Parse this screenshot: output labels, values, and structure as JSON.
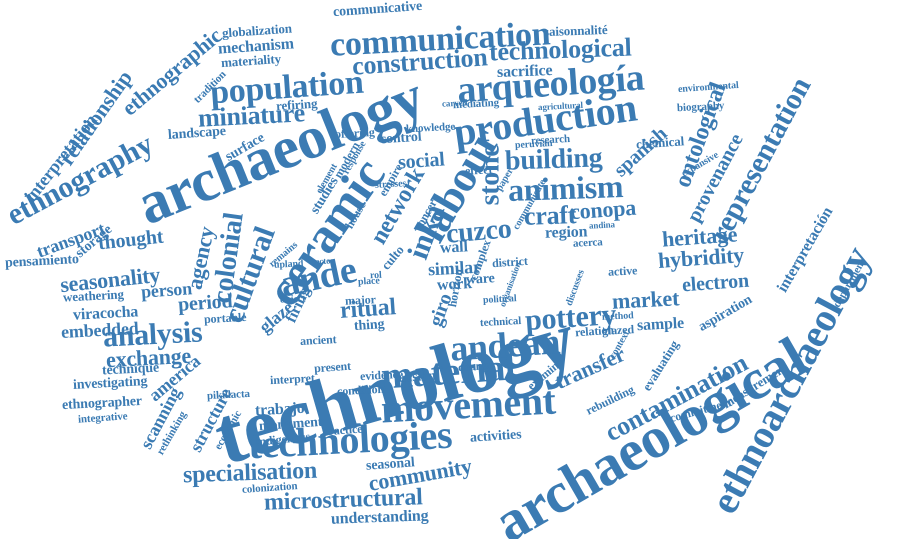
{
  "cloud": {
    "accent_color": "#3b7bb3",
    "background_color": "#ffffff",
    "words": [
      "technology",
      "archaeology",
      "archaeological",
      "ethnoarchaeology",
      "ceramic",
      "labour",
      "production",
      "arqueología",
      "population",
      "communication",
      "construction",
      "technological",
      "movement",
      "technologies",
      "material",
      "andean",
      "ande",
      "animism",
      "building",
      "stone",
      "inka",
      "cuzco",
      "analysis",
      "cultural",
      "colonial",
      "pottery",
      "contamination",
      "representation",
      "heritage",
      "hybridity",
      "market",
      "electron",
      "exchange",
      "specialisation",
      "microstructural",
      "community",
      "transfer",
      "miniature",
      "seasonality",
      "ethnography",
      "ethnographic",
      "relationship",
      "interpretation",
      "transport",
      "thought",
      "agency",
      "period",
      "person",
      "embedded",
      "viracocha",
      "weathering",
      "pensamiento",
      "storage",
      "landscape",
      "surface",
      "refiring",
      "mechanism",
      "materiality",
      "globalization",
      "communicative",
      "saisonnalité",
      "sacrifice",
      "mediating",
      "agricultural",
      "biography",
      "environmental",
      "social",
      "control",
      "craft",
      "conopa",
      "region",
      "spanish",
      "provenance",
      "ontological",
      "interpretación",
      "department",
      "chemical",
      "expansive",
      "sample",
      "aspiration",
      "evaluating",
      "rebuilding",
      "commitment",
      "measurement",
      "trabajo",
      "monument",
      "practice",
      "indigenous",
      "activities",
      "seasonal",
      "colonization",
      "understanding",
      "scanning",
      "structure",
      "america",
      "technique",
      "investigating",
      "ethnographer",
      "integrative",
      "rethinking",
      "economic",
      "pikillacta",
      "interpret",
      "present",
      "condition",
      "tension",
      "change",
      "examine",
      "evidence",
      "ritual",
      "thing",
      "major",
      "glaze",
      "firing",
      "portable",
      "ancient",
      "object",
      "similar",
      "work",
      "ware",
      "wall",
      "giro",
      "place",
      "culto",
      "rol",
      "effect",
      "empire",
      "network",
      "house",
      "studies",
      "element",
      "research",
      "modern",
      "response",
      "offering",
      "concern",
      "knowledge",
      "stresses",
      "carved",
      "paper",
      "complex",
      "district",
      "organisation",
      "andina",
      "acerca",
      "active",
      "relation",
      "glazed",
      "method",
      "context",
      "discusses",
      "political",
      "technical",
      "upland",
      "remains",
      "tradition",
      "horizon",
      "peruvian",
      "communicate",
      "sector",
      "cerámica",
      "powerful",
      "authority"
    ]
  }
}
